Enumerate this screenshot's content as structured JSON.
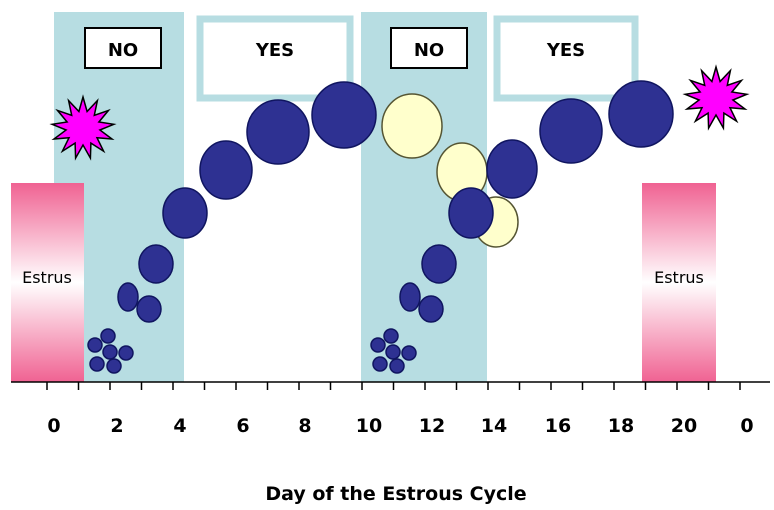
{
  "x_axis": {
    "title": "Day of the Estrous Cycle",
    "ticks": [
      "0",
      "2",
      "4",
      "6",
      "8",
      "10",
      "12",
      "14",
      "16",
      "18",
      "20",
      "0"
    ]
  },
  "estrus_label": "Estrus",
  "response_boxes": [
    {
      "label": "NO"
    },
    {
      "label": "YES"
    },
    {
      "label": "NO"
    },
    {
      "label": "YES"
    }
  ],
  "colors": {
    "shaded_band": "#b7dde2",
    "box_border": "#b7dde2",
    "follicle_dominant": "#2e3192",
    "follicle_regressing": "#ffffcc",
    "estrus_top": "#f06292",
    "ovulation_burst": "#ff00ff"
  },
  "icons": {
    "ovulation": "starburst-icon"
  }
}
